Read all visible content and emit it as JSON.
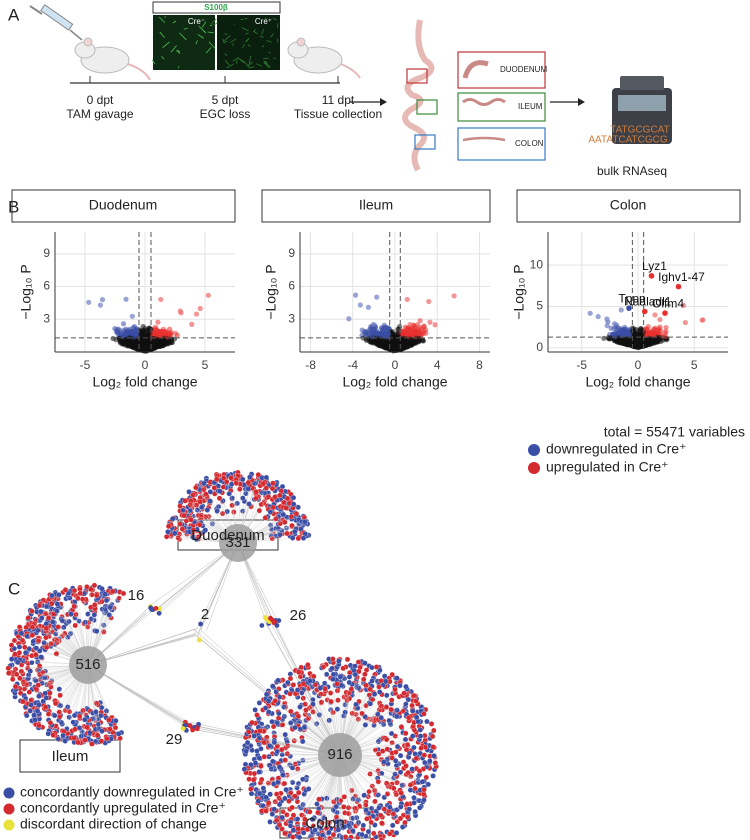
{
  "panels": {
    "a": "A",
    "b": "B",
    "c": "C"
  },
  "timeline": [
    {
      "time": "0 dpt",
      "event": "TAM gavage"
    },
    {
      "time": "5 dpt",
      "event": "EGC loss"
    },
    {
      "time": "11 dpt",
      "event": "Tissue collection"
    }
  ],
  "micrograph": {
    "stain": "S100β",
    "left": "Cre⁻",
    "right": "Cre⁺"
  },
  "segments": [
    "DUODENUM",
    "ILEUM",
    "COLON"
  ],
  "sequencing": "bulk RNAseq",
  "volcano": {
    "x_label": "Log₂ fold change",
    "y_label": "−Log₁₀ P",
    "plots": [
      {
        "title": "Duodenum",
        "xlim": [
          -7.5,
          7.5
        ],
        "ylim": [
          0,
          11
        ],
        "xticks": [
          -5,
          0,
          5
        ],
        "yticks": [
          3,
          6,
          9
        ],
        "cutoffs": {
          "x": [
            -0.5,
            0.5
          ],
          "y": 1.3
        },
        "genes": []
      },
      {
        "title": "Ileum",
        "xlim": [
          -9,
          9
        ],
        "ylim": [
          0,
          11
        ],
        "xticks": [
          -8,
          -4,
          0,
          4,
          8
        ],
        "yticks": [
          3,
          6,
          9
        ],
        "cutoffs": {
          "x": [
            -0.5,
            0.5
          ],
          "y": 1.3
        },
        "genes": []
      },
      {
        "title": "Colon",
        "xlim": [
          -8,
          8
        ],
        "ylim": [
          -0.5,
          14
        ],
        "xticks": [
          -5,
          0,
          5
        ],
        "yticks": [
          0,
          5,
          10
        ],
        "cutoffs": {
          "x": [
            -0.5,
            0.5
          ],
          "y": 1.3
        },
        "genes": [
          {
            "name": "Lyz1",
            "x": 1.2,
            "y": 8.7
          },
          {
            "name": "Naaladl1",
            "x": 0.6,
            "y": 4.4
          },
          {
            "name": "Ighv1-47",
            "x": 3.6,
            "y": 7.4
          },
          {
            "name": "Olfm4",
            "x": 2.4,
            "y": 4.2
          },
          {
            "name": "Tppp",
            "x": -0.8,
            "y": 4.8
          }
        ]
      }
    ]
  },
  "legend_b": {
    "total": "total = 55471 variables",
    "items": [
      {
        "label": "downregulated in Cre⁺",
        "color": "#3a4ea6"
      },
      {
        "label": "upregulated in Cre⁺",
        "color": "#d32a2f"
      }
    ]
  },
  "network": {
    "tissues": [
      "Duodenum",
      "Ileum",
      "Colon"
    ],
    "nodes": [
      331,
      516,
      916,
      16,
      26,
      2,
      29
    ],
    "legend": [
      {
        "label": "concordantly downregulated in Cre⁺",
        "color": "#3a4ea6"
      },
      {
        "label": "concordantly upregulated in Cre⁺",
        "color": "#d32a2f"
      },
      {
        "label": "discordant direction of change",
        "color": "#e8e23a"
      }
    ]
  }
}
